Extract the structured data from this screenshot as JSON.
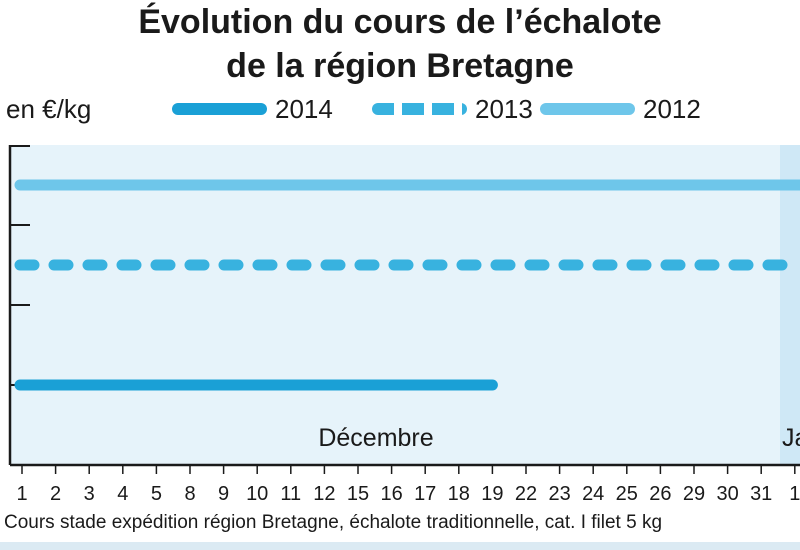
{
  "title": {
    "line1": "Évolution du cours de l’échalote",
    "line2": "de la région Bretagne"
  },
  "unit_label": "en €/kg",
  "legend": [
    {
      "label": "2014",
      "color": "#1aa0d6",
      "style": "solid"
    },
    {
      "label": "2013",
      "color": "#38b2df",
      "style": "dashed"
    },
    {
      "label": "2012",
      "color": "#6ec6ea",
      "style": "solid"
    }
  ],
  "source": "Cours stade expédition région Bretagne, échalote traditionnelle, cat. I filet 5 kg",
  "colors": {
    "plot_background": "#e6f3fa",
    "january_shade": "#cfe8f6",
    "axis": "#1a1a1a"
  },
  "chart_data": {
    "type": "line",
    "x": [
      "1",
      "2",
      "3",
      "4",
      "5",
      "8",
      "9",
      "10",
      "11",
      "12",
      "15",
      "16",
      "17",
      "18",
      "19",
      "22",
      "23",
      "24",
      "25",
      "26",
      "29",
      "30",
      "31",
      "1"
    ],
    "months": [
      {
        "label": "Décembre",
        "from_index": 0,
        "to_index": 22
      },
      {
        "label": "Janv",
        "from_index": 23,
        "to_index": 23
      }
    ],
    "y_ticks": 4,
    "ylim": [
      0,
      4
    ],
    "series": [
      {
        "name": "2014",
        "style": "solid",
        "color": "#1aa0d6",
        "values": [
          1,
          1,
          1,
          1,
          1,
          1,
          1,
          1,
          1,
          1,
          1,
          1,
          1,
          1,
          1,
          null,
          null,
          null,
          null,
          null,
          null,
          null,
          null,
          null
        ]
      },
      {
        "name": "2013",
        "style": "dashed",
        "color": "#38b2df",
        "values": [
          2.5,
          2.5,
          2.5,
          2.5,
          2.5,
          2.5,
          2.5,
          2.5,
          2.5,
          2.5,
          2.5,
          2.5,
          2.5,
          2.5,
          2.5,
          2.5,
          2.5,
          2.5,
          2.5,
          2.5,
          2.5,
          2.5,
          2.5,
          2.5
        ]
      },
      {
        "name": "2012",
        "style": "solid",
        "color": "#6ec6ea",
        "values": [
          3.5,
          3.5,
          3.5,
          3.5,
          3.5,
          3.5,
          3.5,
          3.5,
          3.5,
          3.5,
          3.5,
          3.5,
          3.5,
          3.5,
          3.5,
          3.5,
          3.5,
          3.5,
          3.5,
          3.5,
          3.5,
          3.5,
          3.5,
          3.5
        ]
      }
    ]
  }
}
